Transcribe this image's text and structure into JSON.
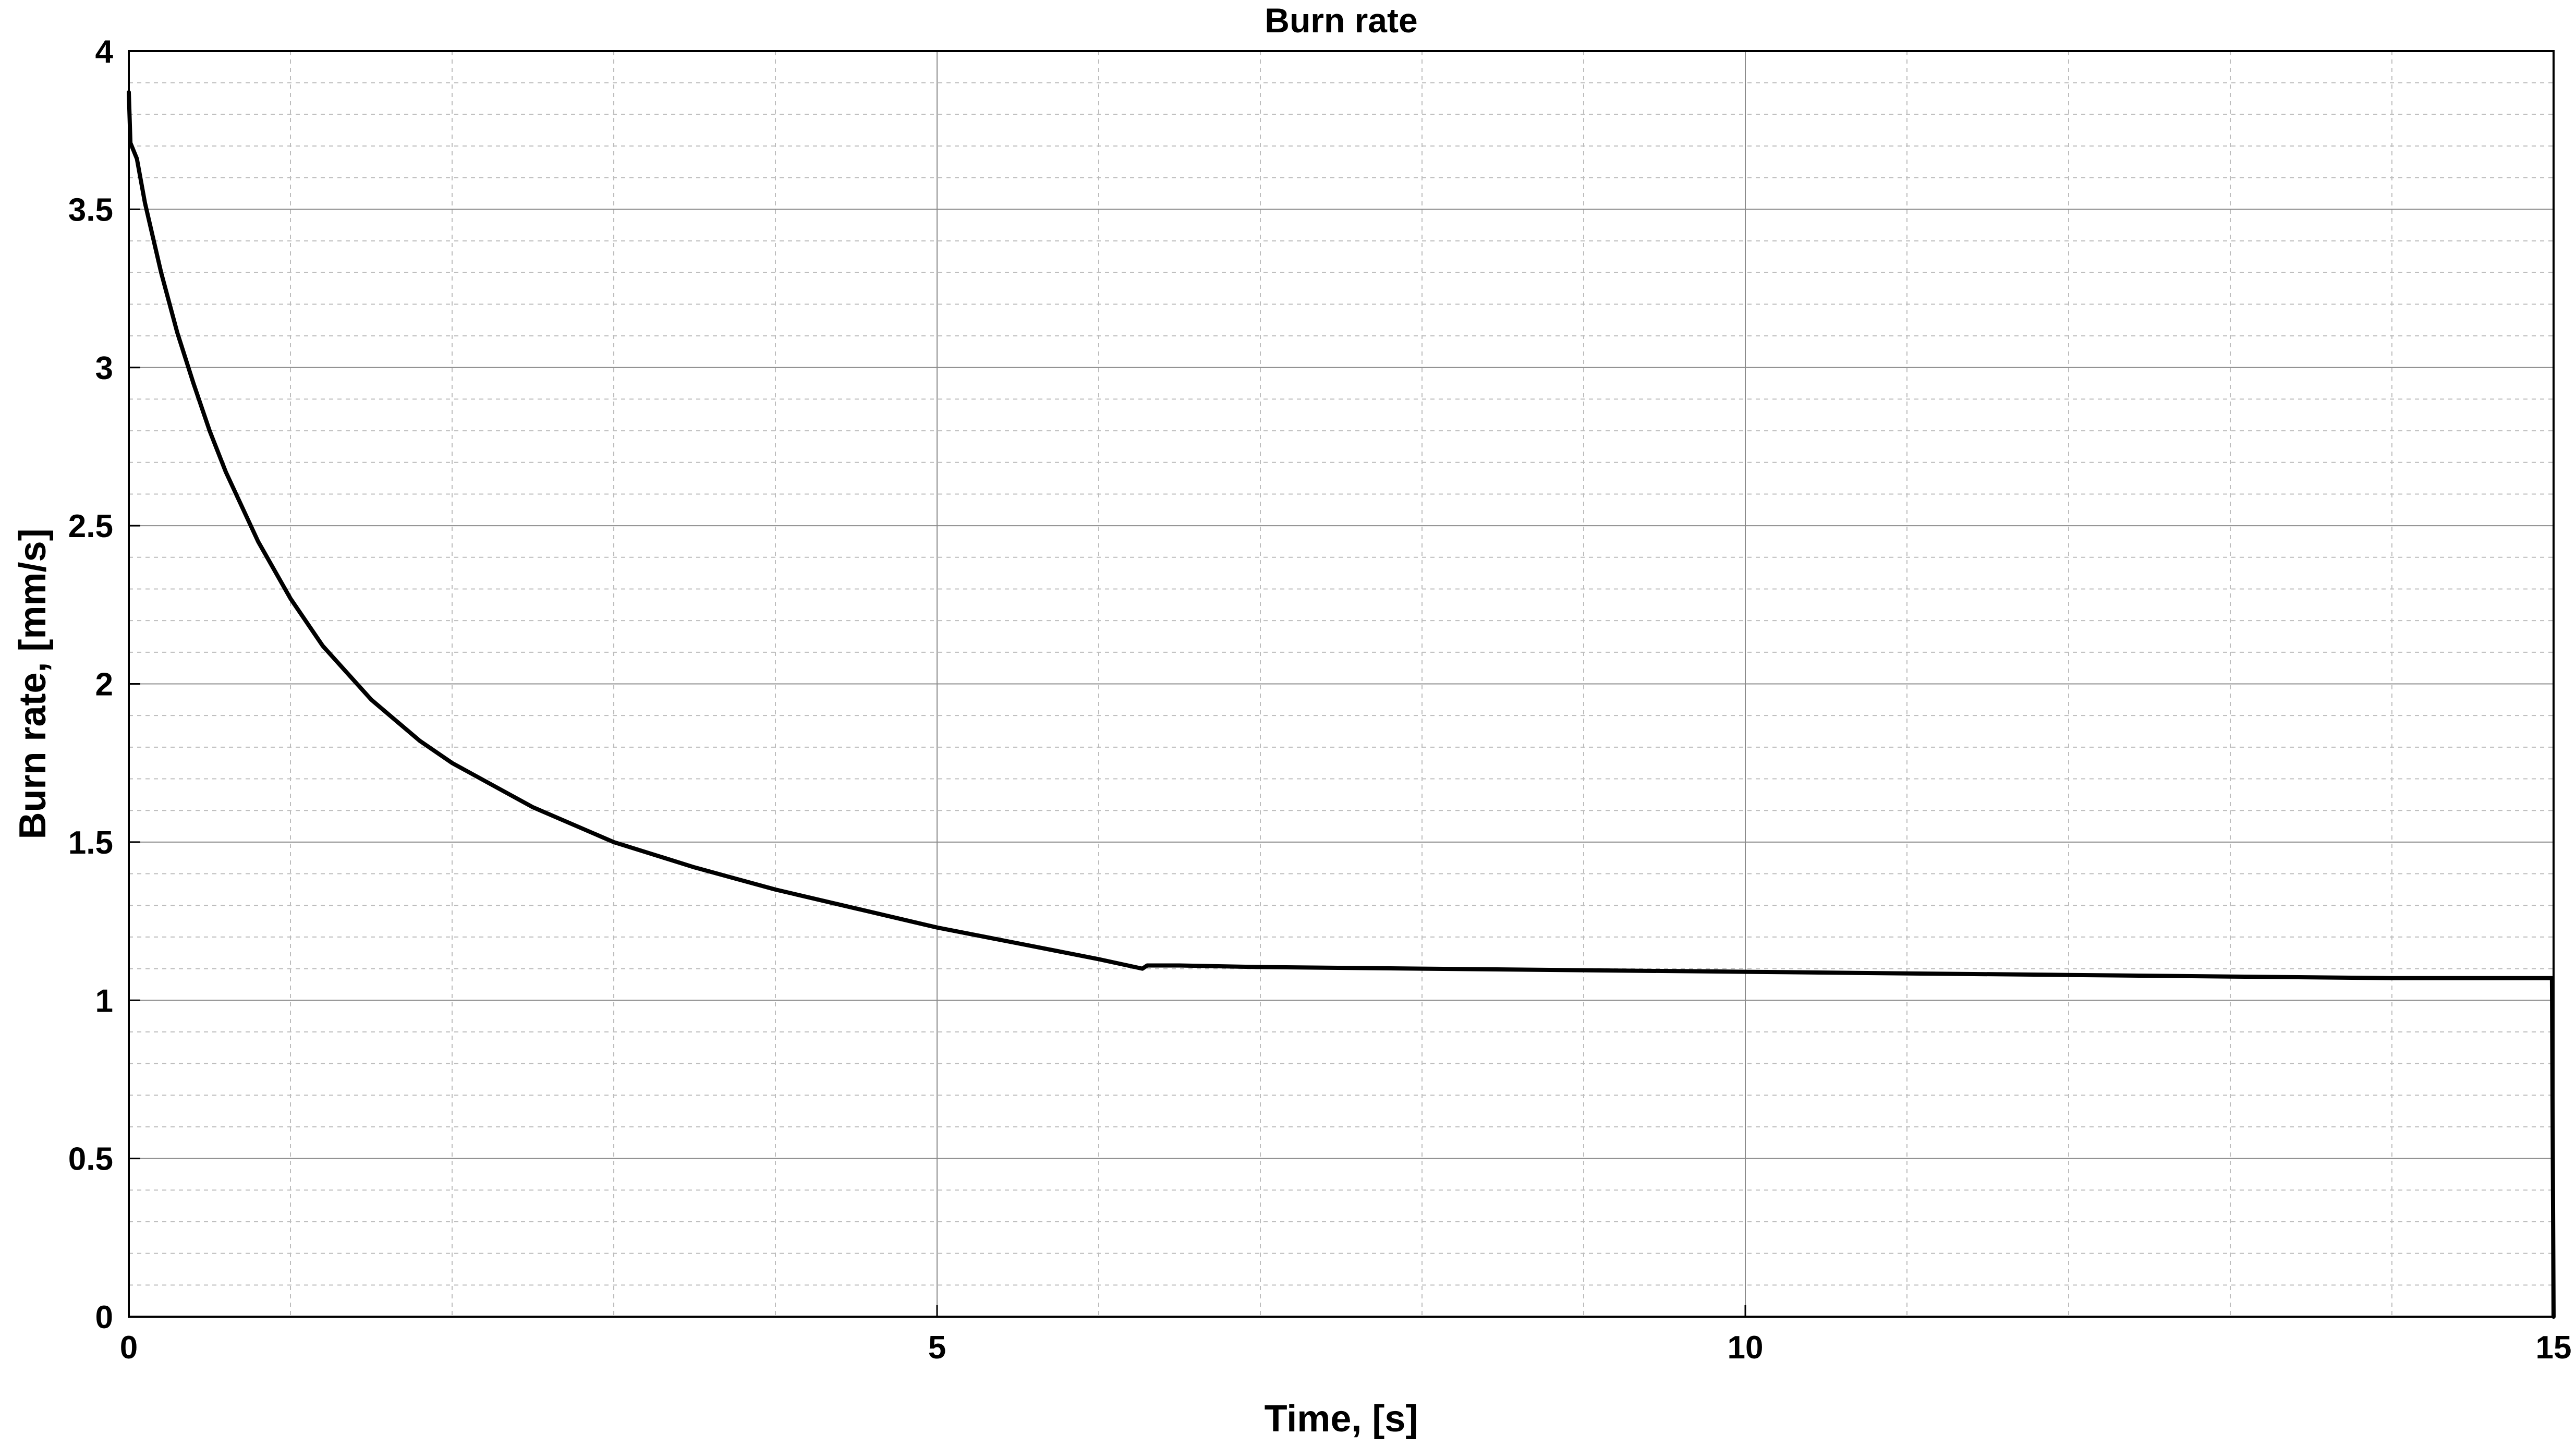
{
  "chart_data": {
    "type": "line",
    "title": "Burn rate",
    "xlabel": "Time, [s]",
    "ylabel": "Burn rate, [mm/s]",
    "xlim": [
      0,
      15
    ],
    "ylim": [
      0,
      4
    ],
    "xticks": [
      0,
      5,
      10,
      15
    ],
    "xtick_labels": [
      "0",
      "5",
      "10",
      "15"
    ],
    "yticks": [
      0,
      0.5,
      1,
      1.5,
      2,
      2.5,
      3,
      3.5,
      4
    ],
    "ytick_labels": [
      "0",
      "0.5",
      "1",
      "1.5",
      "2",
      "2.5",
      "3",
      "3.5",
      "4"
    ],
    "x_minor_step": 1,
    "y_minor_step": 0.1,
    "grid": true,
    "minor_grid": true,
    "line_color": "#000000",
    "series": [
      {
        "x": [
          0,
          0.01,
          0.05,
          0.1,
          0.2,
          0.3,
          0.4,
          0.5,
          0.6,
          0.8,
          1.0,
          1.2,
          1.5,
          1.8,
          2.0,
          2.5,
          3.0,
          3.5,
          4.0,
          4.5,
          5.0,
          5.5,
          6.0,
          6.27,
          6.3,
          6.5,
          7,
          8,
          9,
          10,
          11,
          12,
          13,
          14,
          14.99,
          15.0
        ],
        "y": [
          3.87,
          3.71,
          3.66,
          3.52,
          3.3,
          3.11,
          2.95,
          2.8,
          2.67,
          2.45,
          2.27,
          2.12,
          1.95,
          1.82,
          1.75,
          1.61,
          1.5,
          1.42,
          1.35,
          1.29,
          1.23,
          1.18,
          1.13,
          1.1,
          1.11,
          1.11,
          1.105,
          1.1,
          1.095,
          1.09,
          1.085,
          1.08,
          1.075,
          1.07,
          1.07,
          0
        ]
      }
    ]
  }
}
